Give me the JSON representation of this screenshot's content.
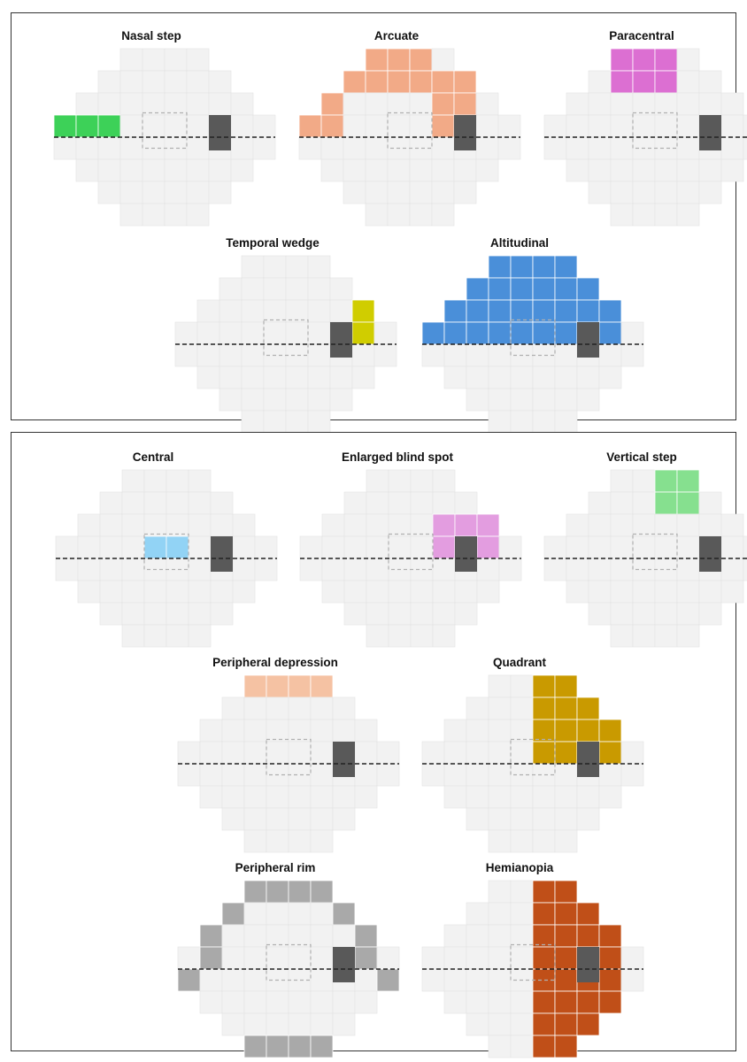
{
  "colors": {
    "grid_cell": "#f2f2f2",
    "grid_line": "#e3e3e3",
    "blind_spot": "#595959",
    "fixation_box": "#b0b0b0",
    "midline": "#222222"
  },
  "panels": [
    {
      "id": "panel-1",
      "figures": [
        {
          "title": "Nasal step",
          "color": "#3dd158",
          "cells": [
            [
              0,
              4
            ],
            [
              1,
              4
            ],
            [
              2,
              4
            ]
          ]
        },
        {
          "title": "Arcuate",
          "color": "#f2aa87",
          "cells": [
            [
              3,
              1
            ],
            [
              4,
              1
            ],
            [
              5,
              1
            ],
            [
              2,
              2
            ],
            [
              3,
              2
            ],
            [
              4,
              2
            ],
            [
              5,
              2
            ],
            [
              6,
              2
            ],
            [
              7,
              2
            ],
            [
              1,
              2
            ],
            [
              1,
              3
            ],
            [
              6,
              3
            ],
            [
              7,
              3
            ],
            [
              0,
              4
            ],
            [
              1,
              4
            ],
            [
              6,
              4
            ]
          ]
        },
        {
          "title": "Paracentral",
          "color": "#dc6fd2",
          "cells": [
            [
              3,
              1
            ],
            [
              4,
              1
            ],
            [
              5,
              1
            ],
            [
              3,
              2
            ],
            [
              4,
              2
            ],
            [
              5,
              2
            ]
          ]
        },
        {
          "title": "Temporal wedge",
          "color": "#d0cd00",
          "cells": [
            [
              8,
              3
            ],
            [
              8,
              4
            ]
          ]
        },
        {
          "title": "Altitudinal",
          "color": "#4a8fd9",
          "cells": [
            [
              3,
              1
            ],
            [
              4,
              1
            ],
            [
              5,
              1
            ],
            [
              6,
              1
            ],
            [
              2,
              2
            ],
            [
              3,
              2
            ],
            [
              4,
              2
            ],
            [
              5,
              2
            ],
            [
              6,
              2
            ],
            [
              7,
              2
            ],
            [
              1,
              3
            ],
            [
              2,
              3
            ],
            [
              3,
              3
            ],
            [
              4,
              3
            ],
            [
              5,
              3
            ],
            [
              6,
              3
            ],
            [
              7,
              3
            ],
            [
              8,
              3
            ],
            [
              0,
              4
            ],
            [
              1,
              4
            ],
            [
              2,
              4
            ],
            [
              3,
              4
            ],
            [
              4,
              4
            ],
            [
              5,
              4
            ],
            [
              6,
              4
            ],
            [
              7,
              4
            ],
            [
              8,
              4
            ]
          ]
        }
      ]
    },
    {
      "id": "panel-2",
      "figures": [
        {
          "title": "Central",
          "color": "#92d3f5",
          "cells": [
            [
              4,
              4
            ],
            [
              5,
              4
            ]
          ]
        },
        {
          "title": "Enlarged blind spot",
          "color": "#e39de0",
          "cells": [
            [
              6,
              3
            ],
            [
              7,
              3
            ],
            [
              8,
              3
            ],
            [
              6,
              4
            ],
            [
              7,
              4
            ],
            [
              8,
              4
            ]
          ]
        },
        {
          "title": "Vertical step",
          "color": "#86e08f",
          "cells": [
            [
              5,
              1
            ],
            [
              6,
              1
            ],
            [
              5,
              2
            ],
            [
              6,
              2
            ]
          ]
        },
        {
          "title": "Peripheral depression",
          "color": "#f5c2a3",
          "cells": [
            [
              3,
              1
            ],
            [
              4,
              1
            ],
            [
              5,
              1
            ],
            [
              6,
              1
            ]
          ]
        },
        {
          "title": "Quadrant",
          "color": "#c99a00",
          "cells": [
            [
              5,
              1
            ],
            [
              6,
              1
            ],
            [
              5,
              2
            ],
            [
              6,
              2
            ],
            [
              7,
              2
            ],
            [
              5,
              3
            ],
            [
              6,
              3
            ],
            [
              7,
              3
            ],
            [
              8,
              3
            ],
            [
              5,
              4
            ],
            [
              6,
              4
            ],
            [
              7,
              4
            ],
            [
              8,
              4
            ]
          ]
        },
        {
          "title": "Peripheral rim",
          "color": "#a9a9a9",
          "cells": [
            [
              3,
              1
            ],
            [
              4,
              1
            ],
            [
              5,
              1
            ],
            [
              6,
              1
            ],
            [
              2,
              2
            ],
            [
              7,
              2
            ],
            [
              1,
              3
            ],
            [
              8,
              3
            ],
            [
              1,
              4
            ],
            [
              8,
              4
            ],
            [
              0,
              5
            ],
            [
              9,
              5
            ],
            [
              0,
              6
            ],
            [
              9,
              6
            ],
            [
              1,
              7
            ],
            [
              8,
              7
            ],
            [
              1,
              8
            ],
            [
              8,
              8
            ],
            [
              2,
              9
            ],
            [
              7,
              9
            ],
            [
              3,
              10
            ],
            [
              4,
              10
            ],
            [
              5,
              10
            ],
            [
              6,
              10
            ]
          ]
        },
        {
          "title": "Hemianopia",
          "color": "#c04f18",
          "cells": [
            [
              5,
              1
            ],
            [
              6,
              1
            ],
            [
              5,
              2
            ],
            [
              6,
              2
            ],
            [
              7,
              2
            ],
            [
              5,
              3
            ],
            [
              6,
              3
            ],
            [
              7,
              3
            ],
            [
              8,
              3
            ],
            [
              5,
              4
            ],
            [
              6,
              4
            ],
            [
              7,
              4
            ],
            [
              8,
              4
            ],
            [
              5,
              5
            ],
            [
              6,
              5
            ],
            [
              7,
              5
            ],
            [
              8,
              5
            ],
            [
              5,
              6
            ],
            [
              6,
              6
            ],
            [
              7,
              6
            ],
            [
              8,
              6
            ],
            [
              5,
              7
            ],
            [
              6,
              7
            ],
            [
              7,
              7
            ],
            [
              8,
              7
            ],
            [
              5,
              8
            ],
            [
              6,
              8
            ],
            [
              7,
              8
            ],
            [
              5,
              9
            ],
            [
              6,
              9
            ]
          ]
        }
      ]
    }
  ]
}
